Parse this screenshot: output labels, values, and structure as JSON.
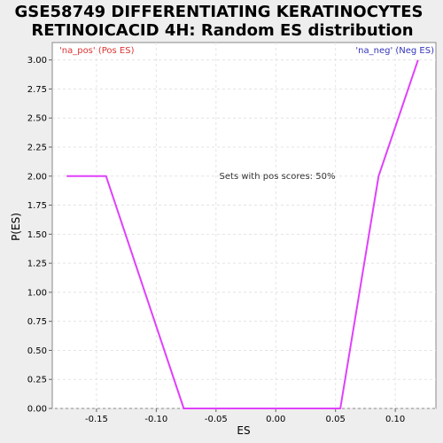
{
  "chart_data": {
    "type": "line",
    "title_line1": "GSE58749 DIFFERENTIATING KERATINOCYTES",
    "title_line2": "RETINOICACID 4H: Random ES distribution",
    "xlabel": "ES",
    "ylabel": "P(ES)",
    "xlim": [
      -0.187,
      0.134
    ],
    "ylim": [
      0.0,
      3.15
    ],
    "x_ticks": [
      -0.15,
      -0.1,
      -0.05,
      0.0,
      0.05,
      0.1
    ],
    "x_tick_labels": [
      "-0.15",
      "-0.10",
      "-0.05",
      "0.00",
      "0.05",
      "0.10"
    ],
    "y_ticks": [
      0.0,
      0.25,
      0.5,
      0.75,
      1.0,
      1.25,
      1.5,
      1.75,
      2.0,
      2.25,
      2.5,
      2.75,
      3.0
    ],
    "y_tick_labels": [
      "0.00",
      "0.25",
      "0.50",
      "0.75",
      "1.00",
      "1.25",
      "1.50",
      "1.75",
      "2.00",
      "2.25",
      "2.50",
      "2.75",
      "3.00"
    ],
    "grid": true,
    "series": [
      {
        "color": "#e040fb",
        "x": [
          -0.175,
          -0.142,
          -0.077,
          0.054,
          0.086,
          0.119
        ],
        "y": [
          2.0,
          2.0,
          0.0,
          0.0,
          2.0,
          3.0
        ]
      }
    ],
    "pos_label": "'na_pos' (Pos ES)",
    "pos_label_color": "#dd3333",
    "neg_label": "'na_neg' (Neg ES)",
    "neg_label_color": "#3333bb",
    "annotation": "Sets with pos scores: 50%"
  }
}
